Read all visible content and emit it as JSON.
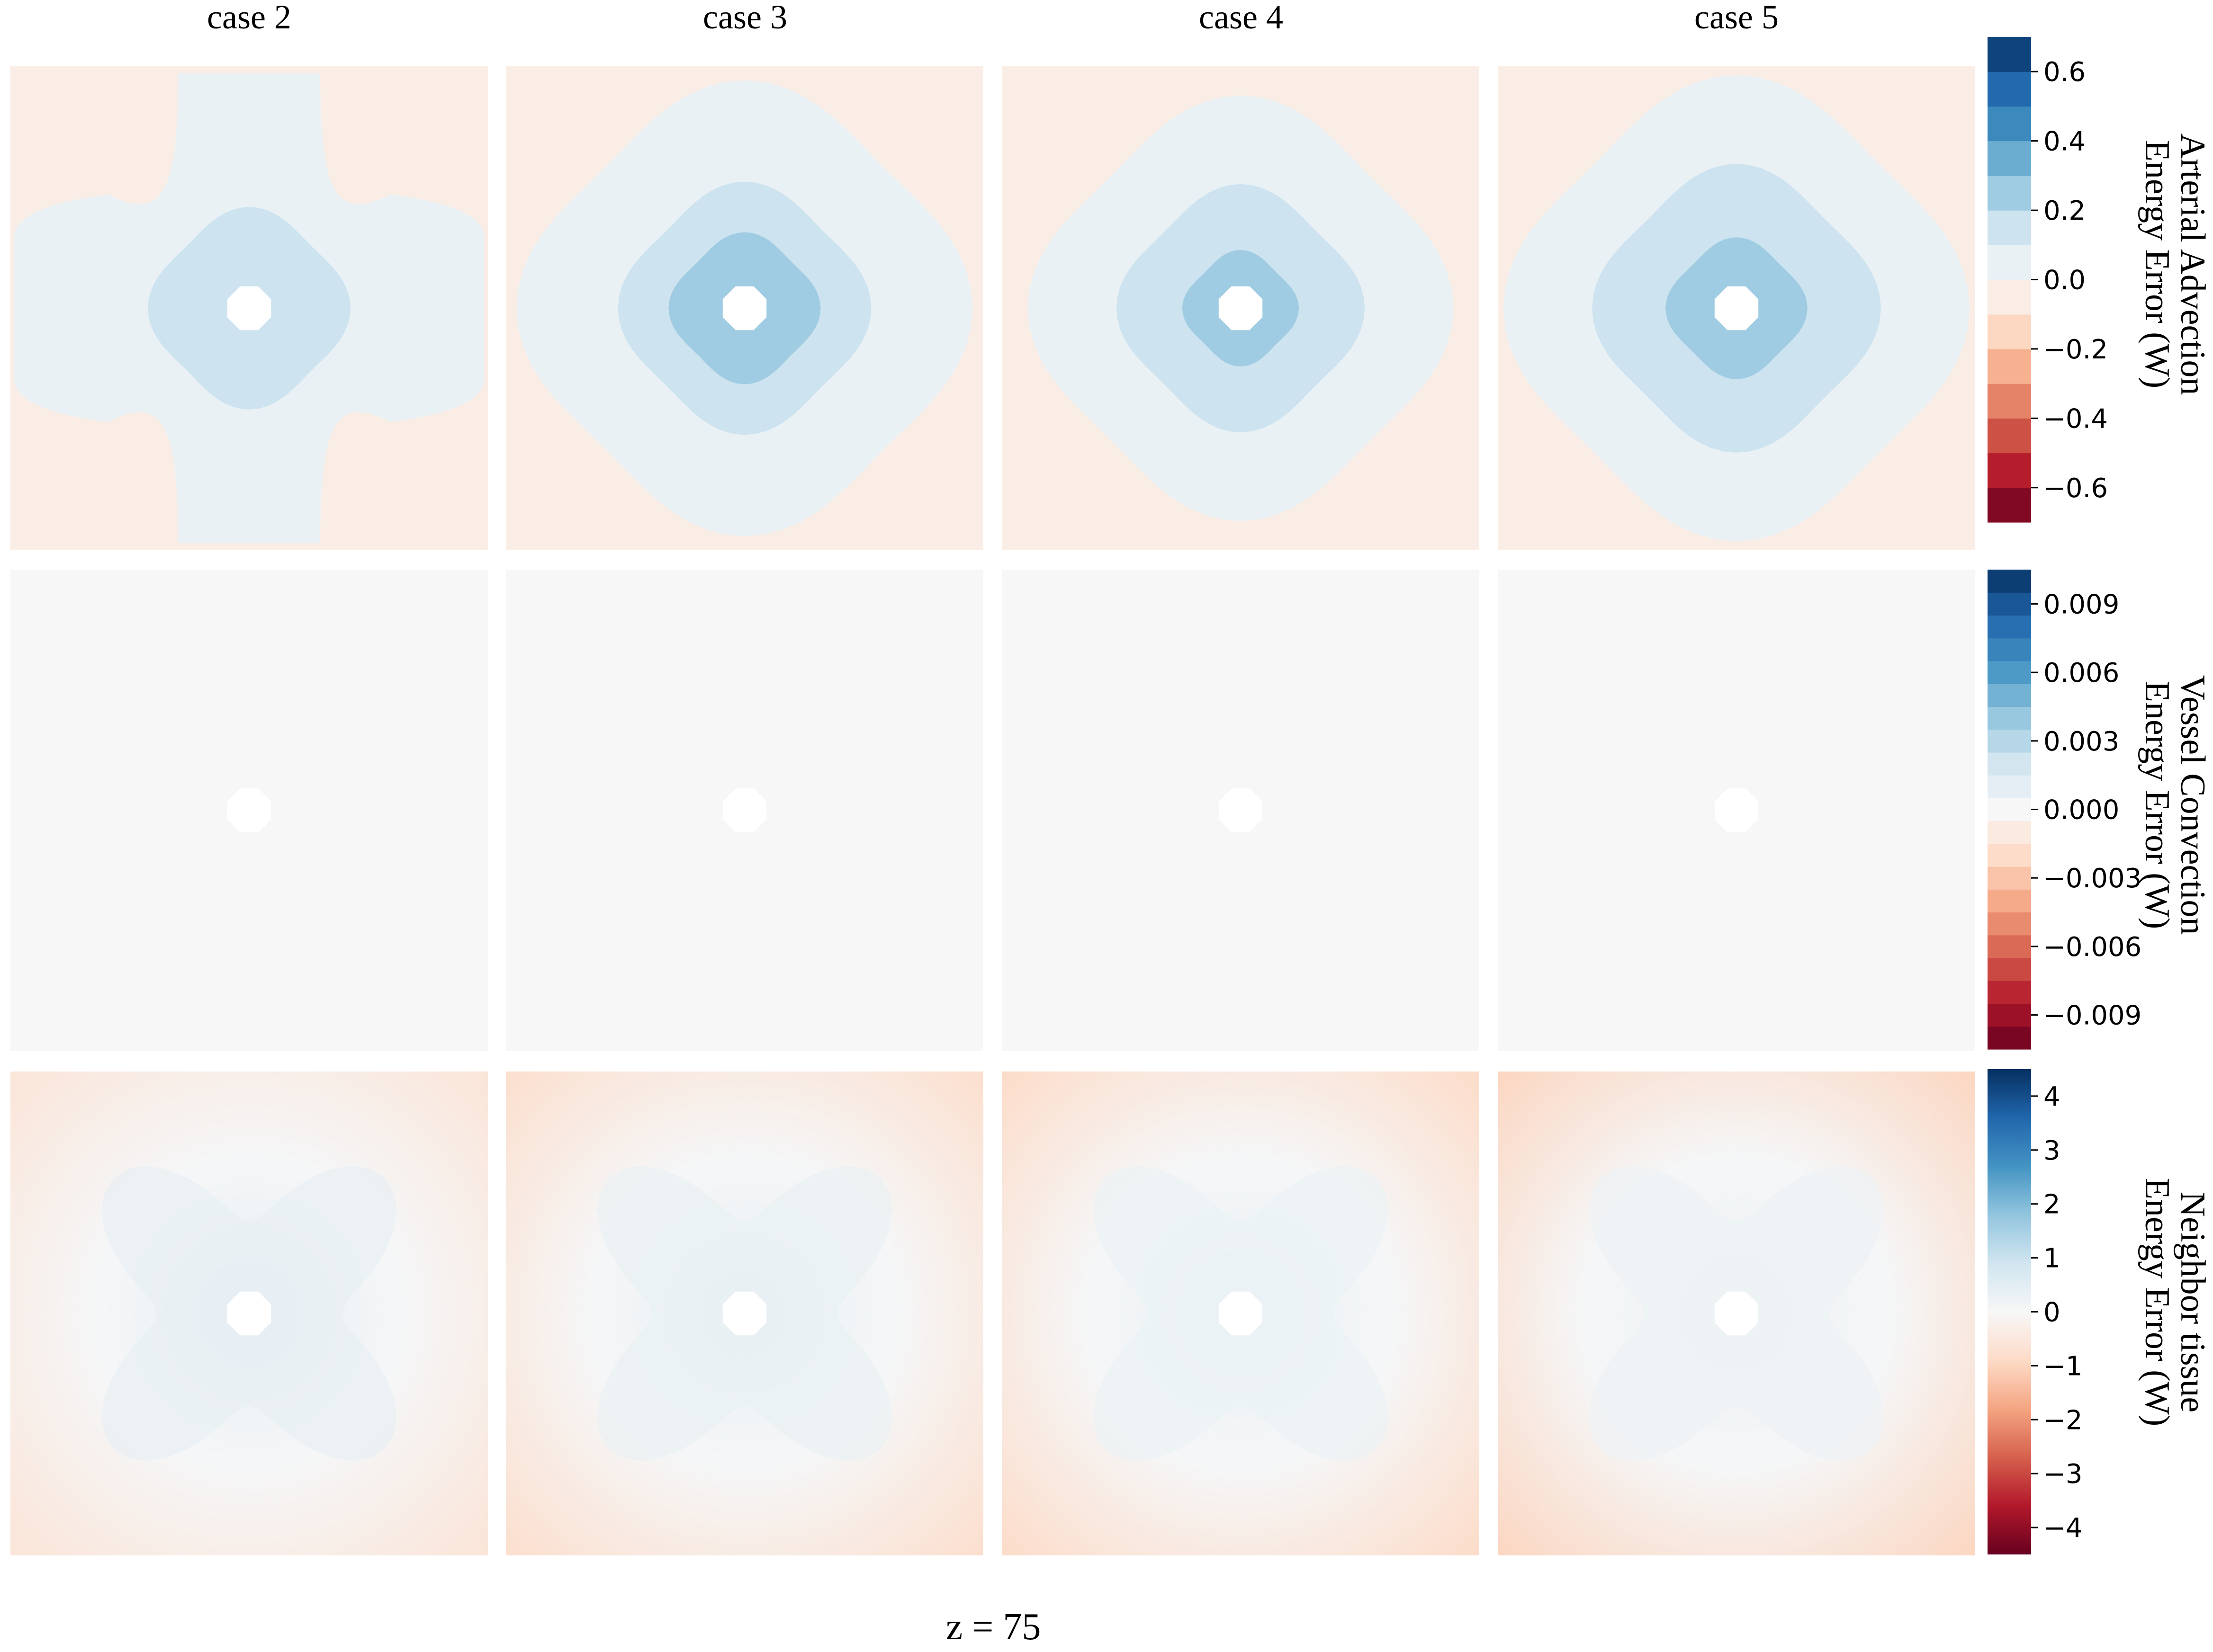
{
  "figure": {
    "footer": "z = 75",
    "columns": [
      "case 2",
      "case 3",
      "case 4",
      "case 5"
    ]
  },
  "chart_data": [
    {
      "type": "heatmap",
      "row": "Arterial Advection Energy Error",
      "colorbar": {
        "label_lines": [
          "Arterial Advection",
          "Energy Error (W)"
        ],
        "range": [
          -0.7,
          0.7
        ],
        "levels": 14,
        "ticks": [
          0.6,
          0.4,
          0.2,
          0.0,
          -0.2,
          -0.4,
          -0.6
        ],
        "tick_labels": [
          "0.6",
          "0.4",
          "0.2",
          "0.0",
          "−0.2",
          "−0.4",
          "−0.6"
        ]
      },
      "panels": [
        {
          "case": "case 2",
          "background_value": -0.05,
          "contours": [
            {
              "value": 0.05,
              "shape": "cross"
            },
            {
              "value": 0.15,
              "shape": "rounded-square"
            }
          ]
        },
        {
          "case": "case 3",
          "background_value": -0.05,
          "contours": [
            {
              "value": 0.05,
              "shape": "rounded-square"
            },
            {
              "value": 0.15,
              "shape": "rounded-square"
            },
            {
              "value": 0.25,
              "shape": "rounded-square"
            }
          ]
        },
        {
          "case": "case 4",
          "background_value": -0.05,
          "contours": [
            {
              "value": 0.05,
              "shape": "rounded-square"
            },
            {
              "value": 0.15,
              "shape": "rounded-square"
            },
            {
              "value": 0.25,
              "shape": "rounded-square"
            }
          ]
        },
        {
          "case": "case 5",
          "background_value": -0.05,
          "contours": [
            {
              "value": 0.05,
              "shape": "rounded-square"
            },
            {
              "value": 0.15,
              "shape": "rounded-square"
            },
            {
              "value": 0.25,
              "shape": "rounded-square"
            }
          ]
        }
      ]
    },
    {
      "type": "heatmap",
      "row": "Vessel Convection Energy Error",
      "colorbar": {
        "label_lines": [
          "Vessel Convection",
          "Energy Error (W)"
        ],
        "range": [
          -0.0105,
          0.0105
        ],
        "levels": 21,
        "ticks": [
          0.009,
          0.006,
          0.003,
          0.0,
          -0.003,
          -0.006,
          -0.009
        ],
        "tick_labels": [
          "0.009",
          "0.006",
          "0.003",
          "0.000",
          "−0.003",
          "−0.006",
          "−0.009"
        ]
      },
      "panels": [
        {
          "case": "case 2",
          "background_value": 0.0003
        },
        {
          "case": "case 3",
          "background_value": 0.0003
        },
        {
          "case": "case 4",
          "background_value": 0.0003
        },
        {
          "case": "case 5",
          "background_value": 0.0003
        }
      ]
    },
    {
      "type": "heatmap",
      "row": "Neighbor tissue Energy Error",
      "colorbar": {
        "label_lines": [
          "Neighbor tissue",
          "Energy Error (W)"
        ],
        "range": [
          -4.5,
          4.5
        ],
        "continuous": true,
        "ticks": [
          4,
          3,
          2,
          1,
          0,
          -1,
          -2,
          -3,
          -4
        ],
        "tick_labels": [
          "4",
          "3",
          "2",
          "1",
          "0",
          "−1",
          "−2",
          "−3",
          "−4"
        ]
      },
      "panels": [
        {
          "case": "case 2",
          "corner_value": -0.6,
          "center_value": 0.4
        },
        {
          "case": "case 3",
          "corner_value": -0.8,
          "center_value": 0.35
        },
        {
          "case": "case 4",
          "corner_value": -0.9,
          "center_value": 0.3
        },
        {
          "case": "case 5",
          "corner_value": -1.0,
          "center_value": 0.25
        }
      ]
    }
  ]
}
